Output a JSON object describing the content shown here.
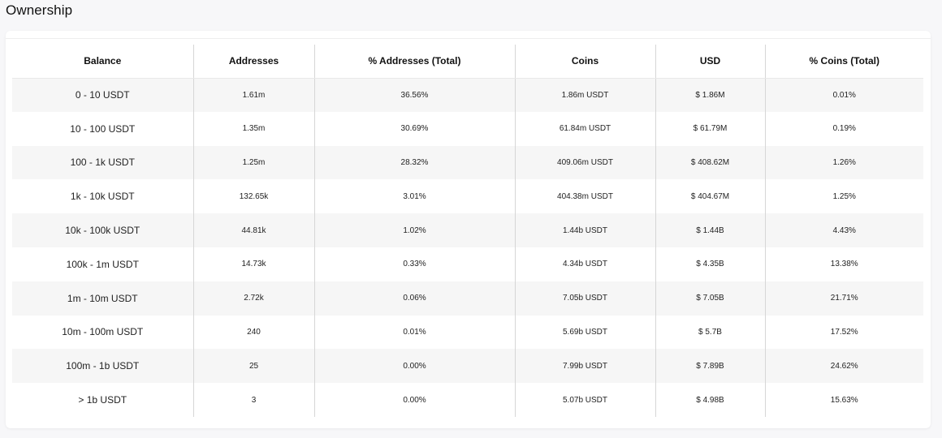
{
  "section_title": "Ownership",
  "table": {
    "headers": [
      "Balance",
      "Addresses",
      "% Addresses (Total)",
      "Coins",
      "USD",
      "% Coins (Total)"
    ],
    "rows": [
      [
        "0 - 10 USDT",
        "1.61m",
        "36.56%",
        "1.86m USDT",
        "$ 1.86M",
        "0.01%"
      ],
      [
        "10 - 100 USDT",
        "1.35m",
        "30.69%",
        "61.84m USDT",
        "$ 61.79M",
        "0.19%"
      ],
      [
        "100 - 1k USDT",
        "1.25m",
        "28.32%",
        "409.06m USDT",
        "$ 408.62M",
        "1.26%"
      ],
      [
        "1k - 10k USDT",
        "132.65k",
        "3.01%",
        "404.38m USDT",
        "$ 404.67M",
        "1.25%"
      ],
      [
        "10k - 100k USDT",
        "44.81k",
        "1.02%",
        "1.44b USDT",
        "$ 1.44B",
        "4.43%"
      ],
      [
        "100k - 1m USDT",
        "14.73k",
        "0.33%",
        "4.34b USDT",
        "$ 4.35B",
        "13.38%"
      ],
      [
        "1m - 10m USDT",
        "2.72k",
        "0.06%",
        "7.05b USDT",
        "$ 7.05B",
        "21.71%"
      ],
      [
        "10m - 100m USDT",
        "240",
        "0.01%",
        "5.69b USDT",
        "$ 5.7B",
        "17.52%"
      ],
      [
        "100m - 1b USDT",
        "25",
        "0.00%",
        "7.99b USDT",
        "$ 7.89B",
        "24.62%"
      ],
      [
        "> 1b USDT",
        "3",
        "0.00%",
        "5.07b USDT",
        "$ 4.98B",
        "15.63%"
      ]
    ]
  }
}
